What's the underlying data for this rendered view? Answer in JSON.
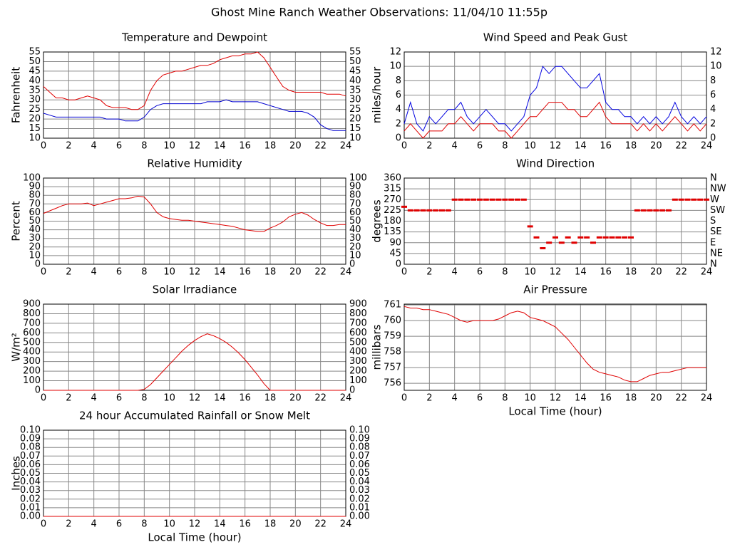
{
  "title": "Ghost Mine Ranch Weather Observations: 11/04/10 11:55p",
  "chart_data": [
    {
      "type": "line",
      "title": "Temperature and Dewpoint",
      "ylabel": "Fahrenheit",
      "x": [
        0,
        0.5,
        1,
        1.5,
        2,
        2.5,
        3,
        3.5,
        4,
        4.5,
        5,
        5.5,
        6,
        6.5,
        7,
        7.5,
        8,
        8.5,
        9,
        9.5,
        10,
        10.5,
        11,
        11.5,
        12,
        12.5,
        13,
        13.5,
        14,
        14.5,
        15,
        15.5,
        16,
        16.5,
        17,
        17.5,
        18,
        18.5,
        19,
        19.5,
        20,
        20.5,
        21,
        21.5,
        22,
        22.5,
        23,
        23.5,
        24
      ],
      "xlim": [
        0,
        24
      ],
      "xticks": [
        0,
        2,
        4,
        6,
        8,
        10,
        12,
        14,
        16,
        18,
        20,
        22,
        24
      ],
      "ylim": [
        10,
        55
      ],
      "yticks": [
        10,
        15,
        20,
        25,
        30,
        35,
        40,
        45,
        50,
        55
      ],
      "mirror_y": true,
      "grid": true,
      "series": [
        {
          "color": "#e00000",
          "values": [
            37,
            34,
            31,
            31,
            30,
            30,
            31,
            32,
            31,
            30,
            27,
            26,
            26,
            26,
            25,
            25,
            27,
            35,
            40,
            43,
            44,
            45,
            45,
            46,
            47,
            48,
            48,
            49,
            51,
            52,
            53,
            53,
            54,
            54,
            55,
            52,
            47,
            42,
            37,
            35,
            34,
            34,
            34,
            34,
            34,
            33,
            33,
            33,
            32
          ]
        },
        {
          "color": "#0000d0",
          "values": [
            23,
            22,
            21,
            21,
            21,
            21,
            21,
            21,
            21,
            21,
            20,
            20,
            20,
            19,
            19,
            19,
            21,
            25,
            27,
            28,
            28,
            28,
            28,
            28,
            28,
            28,
            29,
            29,
            29,
            30,
            29,
            29,
            29,
            29,
            29,
            28,
            27,
            26,
            25,
            24,
            24,
            24,
            23,
            21,
            17,
            15,
            14,
            14,
            14
          ]
        }
      ]
    },
    {
      "type": "line",
      "title": "Wind Speed and Peak Gust",
      "ylabel": "miles/hour",
      "x": [
        0,
        0.5,
        1,
        1.5,
        2,
        2.5,
        3,
        3.5,
        4,
        4.5,
        5,
        5.5,
        6,
        6.5,
        7,
        7.5,
        8,
        8.5,
        9,
        9.5,
        10,
        10.5,
        11,
        11.5,
        12,
        12.5,
        13,
        13.5,
        14,
        14.5,
        15,
        15.5,
        16,
        16.5,
        17,
        17.5,
        18,
        18.5,
        19,
        19.5,
        20,
        20.5,
        21,
        21.5,
        22,
        22.5,
        23,
        23.5,
        24
      ],
      "xlim": [
        0,
        24
      ],
      "xticks": [
        0,
        2,
        4,
        6,
        8,
        10,
        12,
        14,
        16,
        18,
        20,
        22,
        24
      ],
      "ylim": [
        0,
        12
      ],
      "yticks": [
        0,
        2,
        4,
        6,
        8,
        10,
        12
      ],
      "mirror_y": true,
      "grid": true,
      "series": [
        {
          "color": "#0000e0",
          "values": [
            2,
            5,
            2,
            1,
            3,
            2,
            3,
            4,
            4,
            5,
            3,
            2,
            3,
            4,
            3,
            2,
            2,
            1,
            2,
            3,
            6,
            7,
            10,
            9,
            10,
            10,
            9,
            8,
            7,
            7,
            8,
            9,
            5,
            4,
            4,
            3,
            3,
            2,
            3,
            2,
            3,
            2,
            3,
            5,
            3,
            2,
            3,
            2,
            3
          ]
        },
        {
          "color": "#e00000",
          "values": [
            1,
            2,
            1,
            0,
            1,
            1,
            1,
            2,
            2,
            3,
            2,
            1,
            2,
            2,
            2,
            1,
            1,
            0,
            1,
            2,
            3,
            3,
            4,
            5,
            5,
            5,
            4,
            4,
            3,
            3,
            4,
            5,
            3,
            2,
            2,
            2,
            2,
            1,
            2,
            1,
            2,
            1,
            2,
            3,
            2,
            1,
            2,
            1,
            2
          ]
        }
      ]
    },
    {
      "type": "line",
      "title": "Relative Humidity",
      "ylabel": "Percent",
      "x": [
        0,
        0.5,
        1,
        1.5,
        2,
        2.5,
        3,
        3.5,
        4,
        4.5,
        5,
        5.5,
        6,
        6.5,
        7,
        7.5,
        8,
        8.5,
        9,
        9.5,
        10,
        10.5,
        11,
        11.5,
        12,
        12.5,
        13,
        13.5,
        14,
        14.5,
        15,
        15.5,
        16,
        16.5,
        17,
        17.5,
        18,
        18.5,
        19,
        19.5,
        20,
        20.5,
        21,
        21.5,
        22,
        22.5,
        23,
        23.5,
        24
      ],
      "xlim": [
        0,
        24
      ],
      "xticks": [
        0,
        2,
        4,
        6,
        8,
        10,
        12,
        14,
        16,
        18,
        20,
        22,
        24
      ],
      "ylim": [
        0,
        100
      ],
      "yticks": [
        0,
        10,
        20,
        30,
        40,
        50,
        60,
        70,
        80,
        90,
        100
      ],
      "mirror_y": true,
      "grid": true,
      "series": [
        {
          "color": "#e00000",
          "values": [
            59,
            62,
            65,
            68,
            70,
            70,
            70,
            71,
            68,
            70,
            72,
            74,
            76,
            76,
            77,
            79,
            78,
            70,
            60,
            55,
            53,
            52,
            51,
            51,
            50,
            49,
            48,
            47,
            46,
            45,
            44,
            42,
            40,
            39,
            38,
            38,
            42,
            45,
            49,
            55,
            58,
            60,
            57,
            52,
            48,
            45,
            45,
            46,
            46
          ]
        }
      ]
    },
    {
      "type": "scatter",
      "title": "Wind Direction",
      "ylabel": "degrees",
      "x": [
        0,
        0.5,
        1,
        1.5,
        2,
        2.5,
        3,
        3.5,
        4,
        4.5,
        5,
        5.5,
        6,
        6.5,
        7,
        7.5,
        8,
        8.5,
        9,
        9.5,
        10,
        10.5,
        11,
        11.5,
        12,
        12.5,
        13,
        13.5,
        14,
        14.5,
        15,
        15.5,
        16,
        16.5,
        17,
        17.5,
        18,
        18.5,
        19,
        19.5,
        20,
        20.5,
        21,
        21.5,
        22,
        22.5,
        23,
        23.5,
        24
      ],
      "xlim": [
        0,
        24
      ],
      "xticks": [
        0,
        2,
        4,
        6,
        8,
        10,
        12,
        14,
        16,
        18,
        20,
        22,
        24
      ],
      "ylim": [
        0,
        360
      ],
      "yticks": [
        0,
        45,
        90,
        135,
        180,
        225,
        270,
        315,
        360
      ],
      "grid": true,
      "y2lim": [
        0,
        360
      ],
      "y2ticks": [
        {
          "value": 0,
          "label": "N"
        },
        {
          "value": 45,
          "label": "NE"
        },
        {
          "value": 90,
          "label": "E"
        },
        {
          "value": 135,
          "label": "SE"
        },
        {
          "value": 180,
          "label": "S"
        },
        {
          "value": 225,
          "label": "SW"
        },
        {
          "value": 270,
          "label": "W"
        },
        {
          "value": 315,
          "label": "NW"
        },
        {
          "value": 360,
          "label": "N"
        }
      ],
      "series": [
        {
          "color": "#e00000",
          "values": [
            240,
            225,
            225,
            225,
            225,
            225,
            225,
            225,
            270,
            270,
            270,
            270,
            270,
            270,
            270,
            270,
            270,
            270,
            270,
            270,
            158,
            112,
            67,
            90,
            112,
            90,
            112,
            90,
            112,
            112,
            90,
            112,
            112,
            112,
            112,
            112,
            112,
            225,
            225,
            225,
            225,
            225,
            225,
            270,
            270,
            270,
            270,
            270,
            270
          ]
        }
      ]
    },
    {
      "type": "line",
      "title": "Solar Irradiance",
      "ylabel": "W/m²",
      "x": [
        0,
        0.5,
        1,
        1.5,
        2,
        2.5,
        3,
        3.5,
        4,
        4.5,
        5,
        5.5,
        6,
        6.5,
        7,
        7.5,
        8,
        8.5,
        9,
        9.5,
        10,
        10.5,
        11,
        11.5,
        12,
        12.5,
        13,
        13.5,
        14,
        14.5,
        15,
        15.5,
        16,
        16.5,
        17,
        17.5,
        18,
        18.5,
        19,
        19.5,
        20,
        20.5,
        21,
        21.5,
        22,
        22.5,
        23,
        23.5,
        24
      ],
      "xlim": [
        0,
        24
      ],
      "xticks": [
        0,
        2,
        4,
        6,
        8,
        10,
        12,
        14,
        16,
        18,
        20,
        22,
        24
      ],
      "ylim": [
        0,
        900
      ],
      "yticks": [
        0,
        100,
        200,
        300,
        400,
        500,
        600,
        700,
        800,
        900
      ],
      "mirror_y": true,
      "grid": true,
      "series": [
        {
          "color": "#e00000",
          "values": [
            0,
            0,
            0,
            0,
            0,
            0,
            0,
            0,
            0,
            0,
            0,
            0,
            0,
            0,
            0,
            0,
            10,
            60,
            130,
            200,
            270,
            340,
            410,
            470,
            520,
            560,
            590,
            570,
            540,
            500,
            450,
            390,
            320,
            240,
            160,
            70,
            0,
            0,
            0,
            0,
            0,
            0,
            0,
            0,
            0,
            0,
            0,
            0,
            0
          ]
        }
      ]
    },
    {
      "type": "line",
      "title": "Air Pressure",
      "ylabel": "millibars",
      "xlabel": "Local Time (hour)",
      "x": [
        0,
        0.5,
        1,
        1.5,
        2,
        2.5,
        3,
        3.5,
        4,
        4.5,
        5,
        5.5,
        6,
        6.5,
        7,
        7.5,
        8,
        8.5,
        9,
        9.5,
        10,
        10.5,
        11,
        11.5,
        12,
        12.5,
        13,
        13.5,
        14,
        14.5,
        15,
        15.5,
        16,
        16.5,
        17,
        17.5,
        18,
        18.5,
        19,
        19.5,
        20,
        20.5,
        21,
        21.5,
        22,
        22.5,
        23,
        23.5,
        24
      ],
      "xlim": [
        0,
        24
      ],
      "xticks": [
        0,
        2,
        4,
        6,
        8,
        10,
        12,
        14,
        16,
        18,
        20,
        22,
        24
      ],
      "ylim": [
        755.55,
        761.05
      ],
      "yticks": [
        756,
        757,
        758,
        759,
        760,
        761
      ],
      "grid": true,
      "series": [
        {
          "color": "#e00000",
          "values": [
            760.9,
            760.8,
            760.8,
            760.7,
            760.7,
            760.6,
            760.5,
            760.4,
            760.2,
            760.0,
            759.9,
            760.0,
            760.0,
            760.0,
            760.0,
            760.1,
            760.3,
            760.5,
            760.6,
            760.5,
            760.2,
            760.1,
            760.0,
            759.8,
            759.6,
            759.2,
            758.8,
            758.3,
            757.8,
            757.3,
            756.9,
            756.7,
            756.6,
            756.5,
            756.4,
            756.2,
            756.1,
            756.1,
            756.3,
            756.5,
            756.6,
            756.7,
            756.7,
            756.8,
            756.9,
            757.0,
            757.0,
            757.0,
            757.0
          ]
        }
      ]
    },
    {
      "type": "line",
      "title": "24 hour Accumulated Rainfall or Snow Melt",
      "ylabel": "Inches",
      "xlabel": "Local Time (hour)",
      "x": [
        0,
        0.5,
        1,
        1.5,
        2,
        2.5,
        3,
        3.5,
        4,
        4.5,
        5,
        5.5,
        6,
        6.5,
        7,
        7.5,
        8,
        8.5,
        9,
        9.5,
        10,
        10.5,
        11,
        11.5,
        12,
        12.5,
        13,
        13.5,
        14,
        14.5,
        15,
        15.5,
        16,
        16.5,
        17,
        17.5,
        18,
        18.5,
        19,
        19.5,
        20,
        20.5,
        21,
        21.5,
        22,
        22.5,
        23,
        23.5,
        24
      ],
      "xlim": [
        0,
        24
      ],
      "xticks": [
        0,
        2,
        4,
        6,
        8,
        10,
        12,
        14,
        16,
        18,
        20,
        22,
        24
      ],
      "ylim": [
        0,
        0.1
      ],
      "yticks": [
        {
          "value": 0,
          "label": "0.00"
        },
        {
          "value": 0.01,
          "label": "0.01"
        },
        {
          "value": 0.02,
          "label": "0.02"
        },
        {
          "value": 0.03,
          "label": "0.03"
        },
        {
          "value": 0.04,
          "label": "0.04"
        },
        {
          "value": 0.05,
          "label": "0.05"
        },
        {
          "value": 0.06,
          "label": "0.06"
        },
        {
          "value": 0.07,
          "label": "0.07"
        },
        {
          "value": 0.08,
          "label": "0.08"
        },
        {
          "value": 0.09,
          "label": "0.09"
        },
        {
          "value": 0.1,
          "label": "0.10"
        }
      ],
      "mirror_y": true,
      "grid": true,
      "series": [
        {
          "color": "#e00000",
          "values": [
            0,
            0,
            0,
            0,
            0,
            0,
            0,
            0,
            0,
            0,
            0,
            0,
            0,
            0,
            0,
            0,
            0,
            0,
            0,
            0,
            0,
            0,
            0,
            0,
            0,
            0,
            0,
            0,
            0,
            0,
            0,
            0,
            0,
            0,
            0,
            0,
            0,
            0,
            0,
            0,
            0,
            0,
            0,
            0,
            0,
            0,
            0,
            0,
            0
          ]
        }
      ]
    }
  ]
}
